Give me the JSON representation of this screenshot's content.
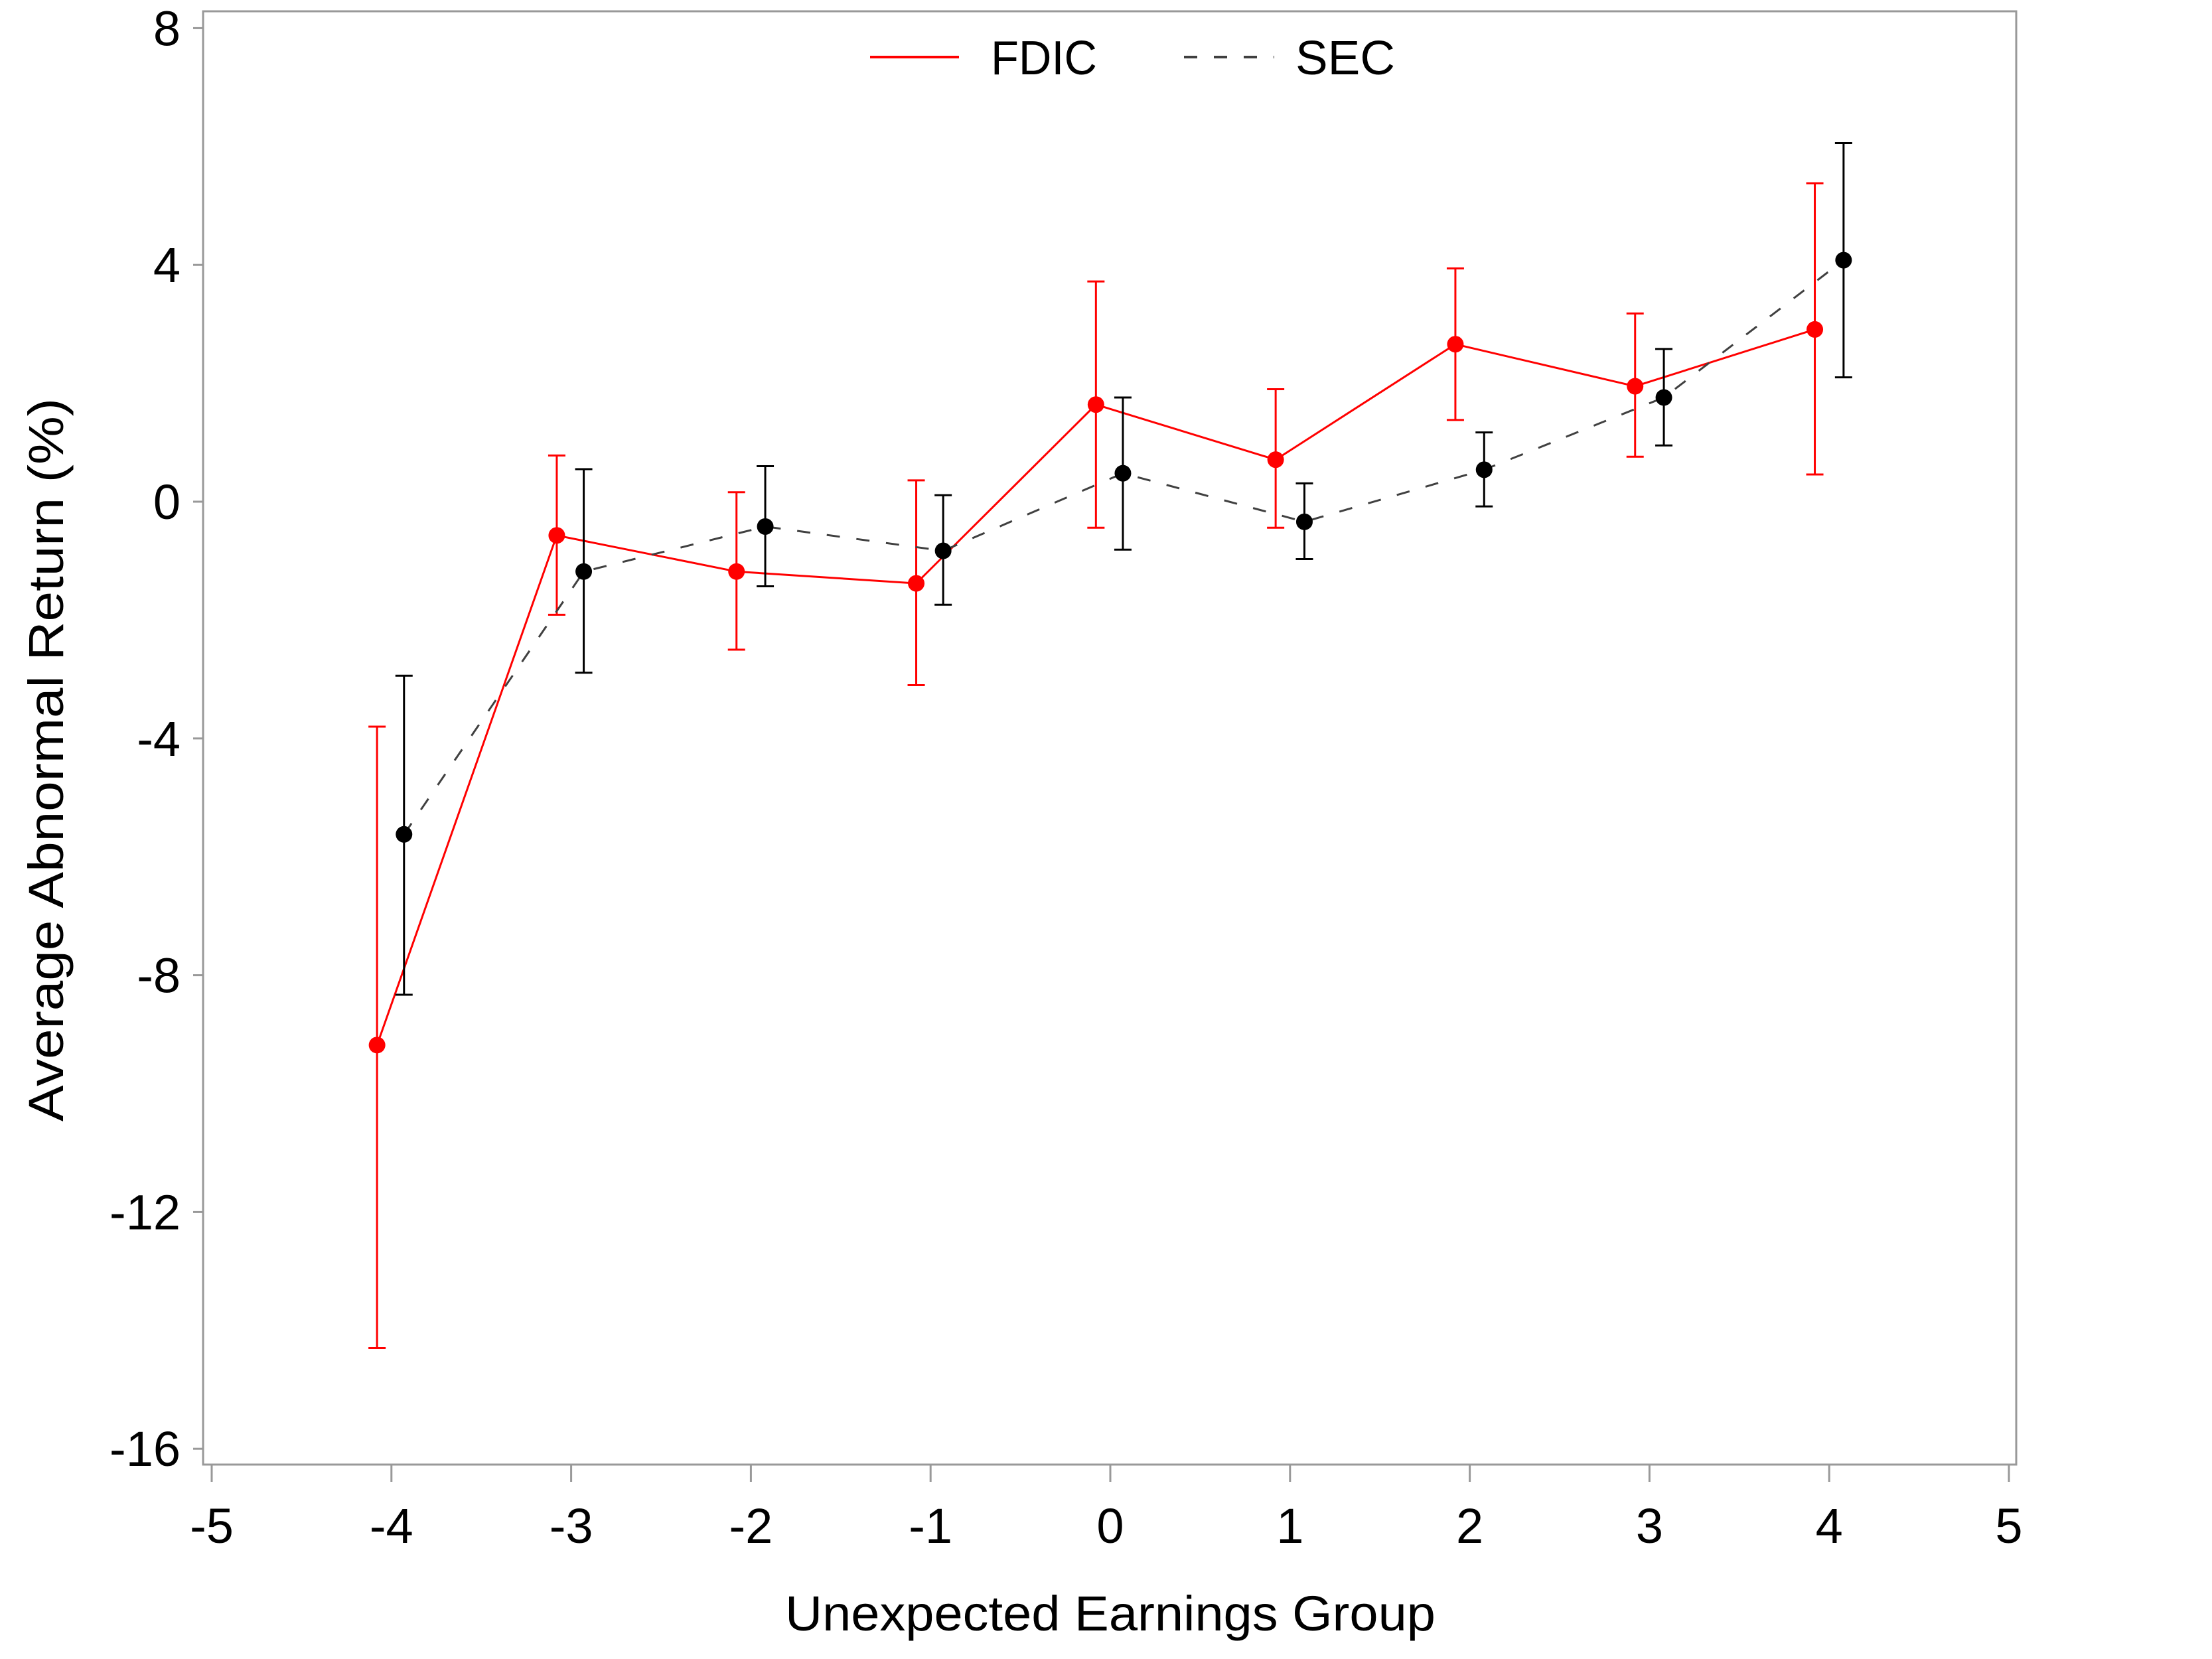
{
  "chart_data": {
    "type": "line",
    "title": "",
    "xlabel": "Unexpected Earnings Group",
    "ylabel": "Average Abnormal Return (%)",
    "xlim": [
      -5,
      5
    ],
    "ylim": [
      -16,
      8
    ],
    "xticks": [
      -5,
      -4,
      -3,
      -2,
      -1,
      0,
      1,
      2,
      3,
      4,
      5
    ],
    "yticks": [
      8,
      4,
      0,
      -4,
      -8,
      -12,
      -16
    ],
    "grid": false,
    "legend_position": "top-center",
    "error_bars": true,
    "axis_color": "#999999",
    "text_color": "#000000",
    "series": [
      {
        "name": "FDIC",
        "line_style": "solid",
        "line_color": "#ff0000",
        "marker": "circle",
        "marker_color": "#ff0000",
        "x": [
          -4.08,
          -3.08,
          -2.08,
          -1.08,
          -0.08,
          0.92,
          1.92,
          2.92,
          3.92
        ],
        "y": [
          -9.18,
          -0.57,
          -1.18,
          -1.38,
          1.64,
          0.71,
          2.66,
          1.95,
          2.91
        ],
        "ci_low": [
          -14.3,
          -1.91,
          -2.5,
          -3.1,
          -0.44,
          -0.44,
          1.38,
          0.76,
          0.46
        ],
        "ci_high": [
          -3.8,
          0.78,
          0.16,
          0.36,
          3.72,
          1.9,
          3.94,
          3.18,
          5.38
        ]
      },
      {
        "name": "SEC",
        "line_style": "dashed",
        "line_color": "#404040",
        "marker": "circle",
        "marker_color": "#000000",
        "x": [
          -3.93,
          -2.93,
          -1.92,
          -0.93,
          0.07,
          1.08,
          2.08,
          3.08,
          4.08
        ],
        "y": [
          -5.62,
          -1.18,
          -0.42,
          -0.83,
          0.48,
          -0.34,
          0.54,
          1.76,
          4.08
        ],
        "ci_low": [
          -8.33,
          -2.89,
          -1.43,
          -1.74,
          -0.81,
          -0.97,
          -0.08,
          0.95,
          2.1
        ],
        "ci_high": [
          -2.94,
          0.55,
          0.6,
          0.11,
          1.76,
          0.31,
          1.17,
          2.58,
          6.06
        ]
      }
    ]
  }
}
